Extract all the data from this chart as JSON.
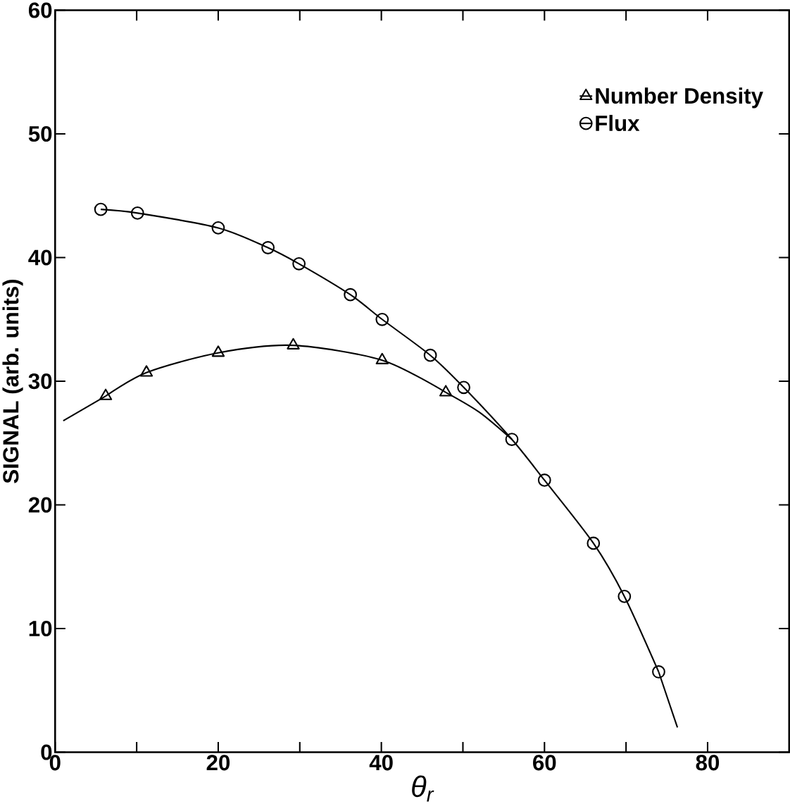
{
  "chart_data": {
    "type": "line",
    "xlabel": "θ$_{r}$",
    "ylabel": "SIGNAL (arb. units)",
    "xlim": [
      0,
      90
    ],
    "ylim": [
      0,
      60
    ],
    "xticks": [
      0,
      {
        "value": 10,
        "label": null
      },
      20,
      {
        "value": 30,
        "label": null
      },
      40,
      {
        "value": 50,
        "label": null
      },
      60,
      {
        "value": 70,
        "label": null
      },
      80
    ],
    "yticks": [
      0,
      10,
      20,
      30,
      40,
      50,
      60
    ],
    "legend": "top right",
    "grid": false,
    "line_style": "solid",
    "series": [
      {
        "name": "Number Density",
        "color": "#000000",
        "marker": "triangle",
        "x": [
          6.2,
          11.2,
          20,
          29.2,
          40.1,
          47.9
        ],
        "values": [
          28.8,
          30.7,
          32.3,
          32.9,
          31.7,
          29.1
        ]
      },
      {
        "name": "Flux",
        "color": "#000000",
        "marker": "circle",
        "x": [
          5.6,
          10.1,
          20,
          26.1,
          29.9,
          36.2,
          40.1,
          46,
          50.1,
          56,
          60,
          66,
          69.8,
          74
        ],
        "values": [
          43.9,
          43.6,
          42.4,
          40.8,
          39.5,
          37,
          35,
          32.1,
          29.5,
          25.3,
          22,
          16.9,
          12.6,
          6.5
        ]
      },
      {
        "color": "#000000",
        "marker": "none",
        "x": [
          1,
          6.2
        ],
        "values": [
          26.8,
          28.8
        ]
      },
      {
        "color": "#000000",
        "marker": "none",
        "x": [
          47.9,
          52,
          56
        ],
        "values": [
          29.1,
          27.5,
          25.3
        ]
      },
      {
        "color": "#000000",
        "marker": "none",
        "x": [
          74,
          76.3
        ],
        "values": [
          6.5,
          2
        ]
      }
    ]
  }
}
